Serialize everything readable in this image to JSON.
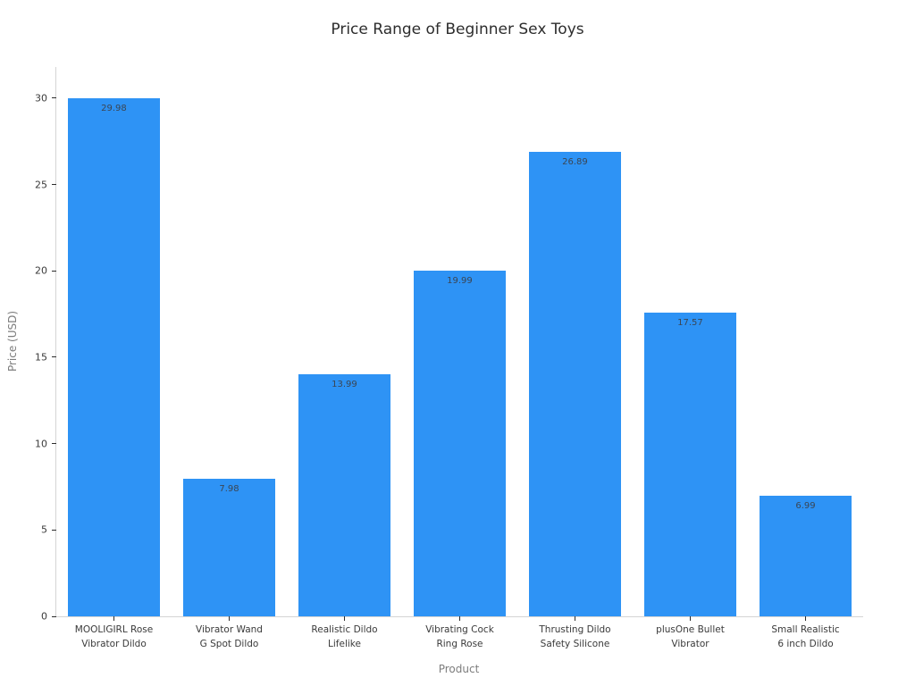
{
  "chart_data": {
    "type": "bar",
    "title": "Price Range of Beginner Sex Toys",
    "xlabel": "Product",
    "ylabel": "Price (USD)",
    "ylim": [
      0,
      31.8
    ],
    "y_ticks": [
      0,
      5,
      10,
      15,
      20,
      25,
      30
    ],
    "grid": false,
    "legend": "none",
    "bar_color": "#2e93f5",
    "value_label_color": "#3b4654",
    "categories": [
      "MOOLIGIRL Rose Vibrator Dildo",
      "Vibrator Wand G Spot Dildo",
      "Realistic Dildo Lifelike",
      "Vibrating Cock Ring Rose",
      "Thrusting Dildo Safety Silicone",
      "plusOne Bullet Vibrator",
      "Small Realistic 6 inch Dildo"
    ],
    "category_lines": [
      [
        "MOOLIGIRL Rose",
        "Vibrator Dildo"
      ],
      [
        "Vibrator Wand",
        "G Spot Dildo"
      ],
      [
        "Realistic Dildo",
        "Lifelike"
      ],
      [
        "Vibrating Cock",
        "Ring Rose"
      ],
      [
        "Thrusting Dildo",
        "Safety Silicone"
      ],
      [
        "plusOne Bullet",
        "Vibrator"
      ],
      [
        "Small Realistic",
        "6 inch Dildo"
      ]
    ],
    "values": [
      29.98,
      7.98,
      13.99,
      19.99,
      26.89,
      17.57,
      6.99
    ],
    "value_labels": [
      "29.98",
      "7.98",
      "13.99",
      "19.99",
      "26.89",
      "17.57",
      "6.99"
    ]
  }
}
